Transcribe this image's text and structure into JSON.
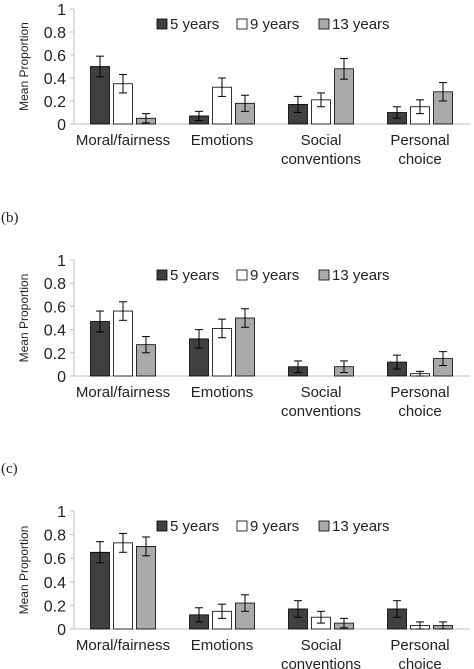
{
  "chart_data": [
    {
      "type": "bar",
      "panel_label": "",
      "categories": [
        "Moral/fairness",
        "Emotions",
        "Social conventions",
        "Personal choice"
      ],
      "ylabel": "Mean Proportion",
      "xlabel": "",
      "ylim": [
        0,
        1
      ],
      "yticks": [
        0,
        0.2,
        0.4,
        0.6,
        0.8,
        1
      ],
      "ytick_labels": [
        "0",
        "0.2",
        "0.4",
        "0.6",
        "0.8",
        "1"
      ],
      "grid": false,
      "legend_position": "top-right",
      "series": [
        {
          "name": "5 years",
          "color": "#404040",
          "values": [
            0.5,
            0.07,
            0.17,
            0.1
          ],
          "errors": [
            0.09,
            0.04,
            0.07,
            0.05
          ]
        },
        {
          "name": "9 years",
          "color": "#ffffff",
          "values": [
            0.35,
            0.32,
            0.21,
            0.15
          ],
          "errors": [
            0.08,
            0.08,
            0.06,
            0.06
          ]
        },
        {
          "name": "13 years",
          "color": "#aaaaaa",
          "values": [
            0.05,
            0.18,
            0.48,
            0.28
          ],
          "errors": [
            0.04,
            0.07,
            0.09,
            0.08
          ]
        }
      ]
    },
    {
      "type": "bar",
      "panel_label": "(b)",
      "categories": [
        "Moral/fairness",
        "Emotions",
        "Social conventions",
        "Personal choice"
      ],
      "ylabel": "Mean Proportion",
      "xlabel": "",
      "ylim": [
        0,
        1
      ],
      "yticks": [
        0,
        0.2,
        0.4,
        0.6,
        0.8,
        1
      ],
      "ytick_labels": [
        "0",
        "0.2",
        "0.4",
        "0.6",
        "0.8",
        "1"
      ],
      "grid": false,
      "legend_position": "top-right",
      "series": [
        {
          "name": "5 years",
          "color": "#404040",
          "values": [
            0.47,
            0.32,
            0.08,
            0.12
          ],
          "errors": [
            0.09,
            0.08,
            0.05,
            0.06
          ]
        },
        {
          "name": "9 years",
          "color": "#ffffff",
          "values": [
            0.56,
            0.41,
            0.0,
            0.02
          ],
          "errors": [
            0.08,
            0.08,
            0.0,
            0.02
          ]
        },
        {
          "name": "13 years",
          "color": "#aaaaaa",
          "values": [
            0.27,
            0.5,
            0.08,
            0.15
          ],
          "errors": [
            0.07,
            0.08,
            0.05,
            0.06
          ]
        }
      ]
    },
    {
      "type": "bar",
      "panel_label": "(c)",
      "categories": [
        "Moral/fairness",
        "Emotions",
        "Social conventions",
        "Personal choice"
      ],
      "ylabel": "Mean Proportion",
      "xlabel": "",
      "ylim": [
        0,
        1
      ],
      "yticks": [
        0,
        0.2,
        0.4,
        0.6,
        0.8,
        1
      ],
      "ytick_labels": [
        "0",
        "0.2",
        "0.4",
        "0.6",
        "0.8",
        "1"
      ],
      "grid": false,
      "legend_position": "top-right",
      "series": [
        {
          "name": "5 years",
          "color": "#404040",
          "values": [
            0.65,
            0.12,
            0.17,
            0.17
          ],
          "errors": [
            0.09,
            0.06,
            0.07,
            0.07
          ]
        },
        {
          "name": "9 years",
          "color": "#ffffff",
          "values": [
            0.73,
            0.15,
            0.1,
            0.03
          ],
          "errors": [
            0.08,
            0.06,
            0.05,
            0.03
          ]
        },
        {
          "name": "13 years",
          "color": "#aaaaaa",
          "values": [
            0.7,
            0.22,
            0.05,
            0.03
          ],
          "errors": [
            0.08,
            0.07,
            0.04,
            0.03
          ]
        }
      ]
    }
  ]
}
